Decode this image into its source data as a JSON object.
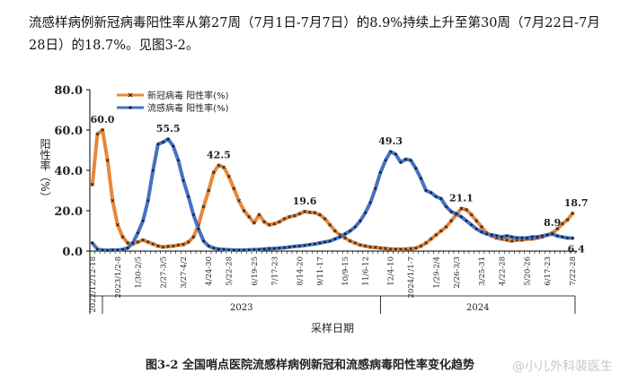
{
  "paragraph": "流感样病例新冠病毒阳性率从第27周（7月1日-7月7日）的8.9%持续上升至第30周（7月22日-7月28日）的18.7%。见图3-2。",
  "caption": "图3-2 全国哨点医院流感样病例新冠和流感病毒阳性率变化趋势",
  "watermark": "@小儿外科裴医生",
  "colors": {
    "covid": "#E8883A",
    "flu": "#4472C4",
    "marker": "#1a1a1a"
  },
  "chart_data": {
    "type": "line",
    "ylabel": "阳性率（%）",
    "xlabel": "采样日期",
    "ylim": [
      0,
      80
    ],
    "yticks": [
      "0.0",
      "20.0",
      "40.0",
      "60.0",
      "80.0"
    ],
    "grid": false,
    "legend_position": "top-left",
    "years": [
      "2023",
      "2024"
    ],
    "x_tick_labels": [
      "2022/12/12-18",
      "2023/1/2-8",
      "1/30-2/5",
      "2/27-3/5",
      "3/27-4/2",
      "4/24-30",
      "5/22-28",
      "6/19-25",
      "7/17-23",
      "8/14-20",
      "9/11-17",
      "10/9-15",
      "11/6-12",
      "12/4-10",
      "2024/1/1-7",
      "1/29-2/4",
      "2/26-3/3",
      "3/25-31",
      "4/22-28",
      "5/20-26",
      "6/17-23",
      "7/22-28"
    ],
    "series": [
      {
        "name": "新冠病毒 阳性率(%)",
        "values": [
          33.0,
          58.0,
          60.0,
          45.0,
          25.0,
          13.0,
          7.0,
          4.0,
          3.5,
          4.5,
          5.5,
          4.5,
          3.5,
          2.5,
          2.0,
          2.3,
          2.5,
          3.0,
          3.3,
          4.5,
          7.0,
          13.0,
          22.0,
          30.0,
          39.0,
          42.5,
          41.5,
          37.0,
          31.0,
          25.0,
          20.0,
          17.0,
          14.0,
          18.0,
          14.5,
          13.0,
          13.5,
          14.5,
          16.0,
          17.0,
          17.5,
          18.5,
          19.6,
          19.2,
          19.0,
          18.0,
          16.0,
          13.0,
          10.0,
          8.0,
          6.5,
          5.0,
          4.0,
          3.0,
          2.5,
          2.0,
          1.8,
          1.5,
          1.3,
          1.0,
          0.9,
          0.9,
          1.0,
          1.2,
          1.5,
          2.5,
          4.0,
          6.0,
          8.0,
          10.0,
          12.0,
          15.0,
          18.0,
          21.1,
          20.5,
          18.0,
          15.0,
          12.0,
          9.0,
          7.5,
          6.5,
          6.0,
          5.5,
          5.0,
          5.5,
          5.5,
          6.0,
          6.0,
          6.5,
          7.0,
          8.0,
          8.9,
          11.0,
          13.5,
          15.5,
          18.7
        ]
      },
      {
        "name": "流感病毒 阳性率(%)",
        "values": [
          4.0,
          1.0,
          0.5,
          0.4,
          0.5,
          0.5,
          0.8,
          1.5,
          4.0,
          9.0,
          15.0,
          25.0,
          40.0,
          53.0,
          54.0,
          55.5,
          52.0,
          45.0,
          35.0,
          27.0,
          18.0,
          11.0,
          5.0,
          2.5,
          1.5,
          1.0,
          0.8,
          0.6,
          0.5,
          0.5,
          0.5,
          0.6,
          0.7,
          0.8,
          1.0,
          1.2,
          1.3,
          1.5,
          1.7,
          2.0,
          2.3,
          2.5,
          2.8,
          3.2,
          3.5,
          4.0,
          4.5,
          5.0,
          6.0,
          7.0,
          8.5,
          10.0,
          12.0,
          15.0,
          19.0,
          24.0,
          31.0,
          39.0,
          45.0,
          49.3,
          48.0,
          44.0,
          45.5,
          45.0,
          41.0,
          36.0,
          30.0,
          29.0,
          27.0,
          26.0,
          22.0,
          19.5,
          18.5,
          17.0,
          15.0,
          13.0,
          11.0,
          9.5,
          8.5,
          8.0,
          7.5,
          7.0,
          7.5,
          7.0,
          6.5,
          6.5,
          6.5,
          7.0,
          7.0,
          7.5,
          8.0,
          8.5,
          7.5,
          7.0,
          6.5,
          6.4
        ]
      }
    ],
    "annotations": [
      {
        "series": 0,
        "index": 2,
        "text": "60.0"
      },
      {
        "series": 1,
        "index": 15,
        "text": "55.5"
      },
      {
        "series": 0,
        "index": 25,
        "text": "42.5"
      },
      {
        "series": 0,
        "index": 42,
        "text": "19.6"
      },
      {
        "series": 1,
        "index": 59,
        "text": "49.3"
      },
      {
        "series": 0,
        "index": 73,
        "text": "21.1"
      },
      {
        "series": 0,
        "index": 91,
        "text": "8.9"
      },
      {
        "series": 0,
        "index": 95,
        "text": "18.7"
      },
      {
        "series": 1,
        "index": 95,
        "text": "6.4"
      }
    ]
  }
}
